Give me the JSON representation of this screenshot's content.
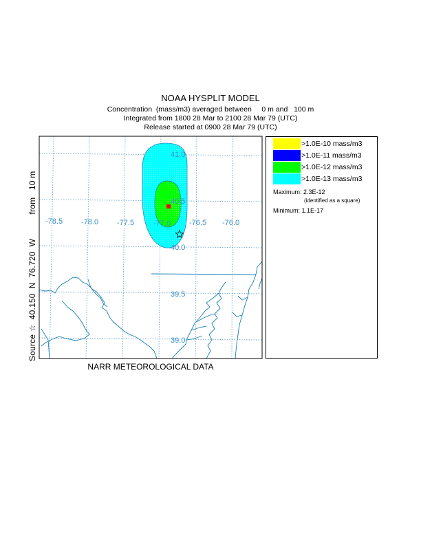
{
  "header": {
    "title": "NOAA HYSPLIT MODEL",
    "line2": "Concentration  (mass/m3) averaged between     0 m and   100 m",
    "line3": "Integrated from 1800 28 Mar to 2100 28 Mar 79 (UTC)",
    "line4": "Release started at 0900 28 Mar 79 (UTC)"
  },
  "source_label": "Source ☆  40.150  N  76.720  W          from   10 m",
  "footer": "NARR METEOROLOGICAL DATA",
  "map": {
    "lon_labels": [
      "-78.5",
      "-78.0",
      "-77.5",
      "-77.0",
      "-76.5",
      "-76.0"
    ],
    "lat_labels": [
      "41.0",
      "40.5",
      "40.0",
      "39.5",
      "39.0"
    ],
    "grid_color": "#5599cc",
    "label_color": "#3a8fc8",
    "source": {
      "lat": 40.15,
      "lon": -76.72
    },
    "maximum_location": {
      "lat": 40.45,
      "lon": -76.9
    }
  },
  "legend": {
    "items": [
      {
        "label": ">1.0E-10 mass/m3",
        "color": "#ffff00"
      },
      {
        "label": ">1.0E-11 mass/m3",
        "color": "#0000ff"
      },
      {
        "label": ">1.0E-12 mass/m3",
        "color": "#00ff00"
      },
      {
        "label": ">1.0E-13 mass/m3",
        "color": "#00ffff"
      }
    ],
    "maximum": "Maximum: 2.3E-12",
    "maximum_note": "(identified as a square)",
    "minimum": "Minimum: 1.1E-17"
  }
}
